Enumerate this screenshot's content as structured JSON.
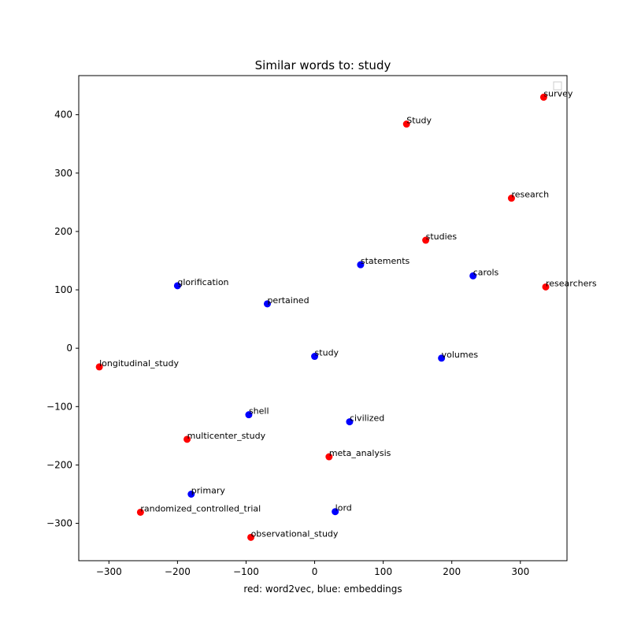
{
  "chart_data": {
    "type": "scatter",
    "title": "Similar words to: study",
    "xlabel": "red: word2vec, blue:  embeddings",
    "ylabel": "",
    "xlim": [
      -344,
      368
    ],
    "ylim": [
      -364,
      467
    ],
    "xticks": [
      -300,
      -200,
      -100,
      0,
      100,
      200,
      300
    ],
    "yticks": [
      -300,
      -200,
      -100,
      0,
      100,
      200,
      300,
      400
    ],
    "grid": false,
    "legend": {
      "placement": "upper right",
      "entries": []
    },
    "colors": {
      "word2vec": "#ff0000",
      "embeddings": "#0000ff"
    },
    "series": [
      {
        "color": "#ff0000",
        "points": [
          {
            "label": "survey",
            "x": 334,
            "y": 430
          },
          {
            "label": "Study",
            "x": 134,
            "y": 384
          },
          {
            "label": "research",
            "x": 287,
            "y": 257
          },
          {
            "label": "studies",
            "x": 162,
            "y": 185
          },
          {
            "label": "researchers",
            "x": 337,
            "y": 105
          },
          {
            "label": "longitudinal_study",
            "x": -314,
            "y": -32
          },
          {
            "label": "multicenter_study",
            "x": -186,
            "y": -156
          },
          {
            "label": "meta_analysis",
            "x": 21,
            "y": -186
          },
          {
            "label": "randomized_controlled_trial",
            "x": -254,
            "y": -281
          },
          {
            "label": "observational_study",
            "x": -93,
            "y": -324
          }
        ]
      },
      {
        "color": "#0000ff",
        "points": [
          {
            "label": "statements",
            "x": 67,
            "y": 143
          },
          {
            "label": "carols",
            "x": 231,
            "y": 124
          },
          {
            "label": "glorification",
            "x": -200,
            "y": 107
          },
          {
            "label": "pertained",
            "x": -69,
            "y": 76
          },
          {
            "label": "study",
            "x": 0,
            "y": -14
          },
          {
            "label": "volumes",
            "x": 185,
            "y": -17
          },
          {
            "label": "shell",
            "x": -96,
            "y": -114
          },
          {
            "label": "civilized",
            "x": 51,
            "y": -126
          },
          {
            "label": "primary",
            "x": -180,
            "y": -250
          },
          {
            "label": "lord",
            "x": 30,
            "y": -280
          }
        ]
      }
    ]
  }
}
